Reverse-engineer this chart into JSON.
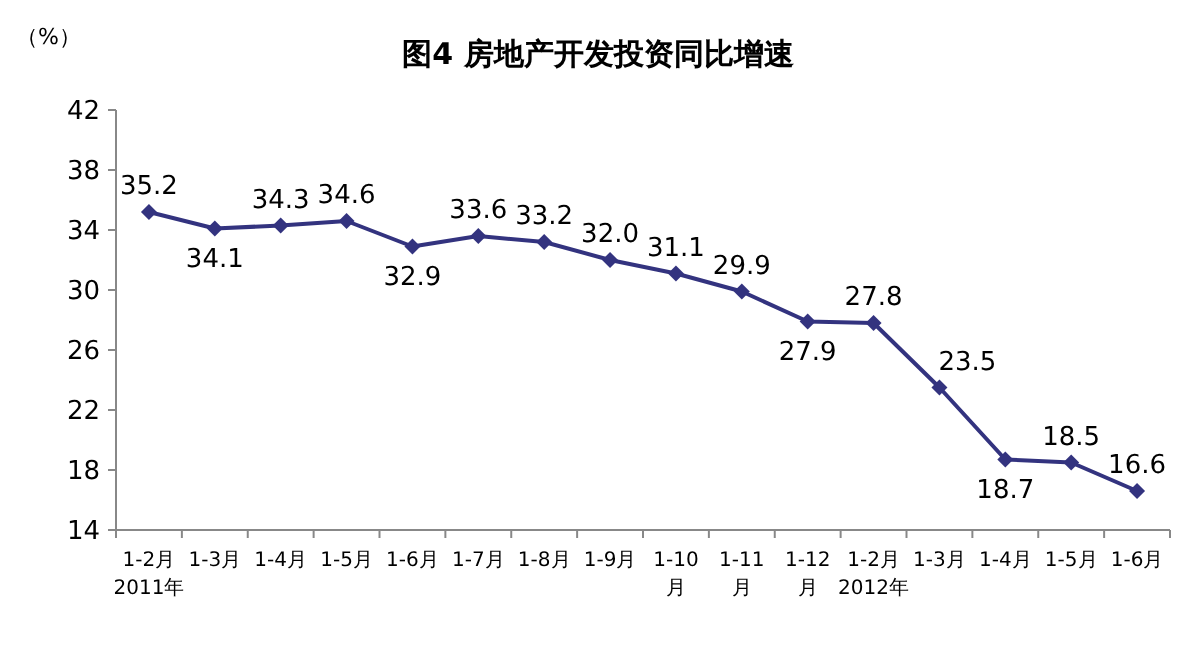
{
  "chart_data": {
    "type": "line",
    "title": "图4 房地产开发投资同比增速",
    "ylabel": "（%）",
    "categories": [
      "1-2月\n2011年",
      "1-3月",
      "1-4月",
      "1-5月",
      "1-6月",
      "1-7月",
      "1-8月",
      "1-9月",
      "1-10\n月",
      "1-11\n月",
      "1-12\n月",
      "1-2月\n2012年",
      "1-3月",
      "1-4月",
      "1-5月",
      "1-6月"
    ],
    "series": [
      {
        "color": "#33337f",
        "values": [
          35.2,
          34.1,
          34.3,
          34.6,
          32.9,
          33.6,
          33.2,
          32.0,
          31.1,
          29.9,
          27.9,
          27.8,
          23.5,
          18.7,
          18.5,
          16.6
        ],
        "value_labels": [
          "35.2",
          "34.1",
          "34.3",
          "34.6",
          "32.9",
          "33.6",
          "33.2",
          "32.0",
          "31.1",
          "29.9",
          "27.9",
          "27.8",
          "23.5",
          "18.7",
          "18.5",
          "16.6"
        ]
      }
    ],
    "ylim": [
      14,
      42
    ],
    "yticks": [
      14,
      18,
      22,
      26,
      30,
      34,
      38,
      42
    ],
    "marker": "diamond",
    "line_style": "solid"
  }
}
